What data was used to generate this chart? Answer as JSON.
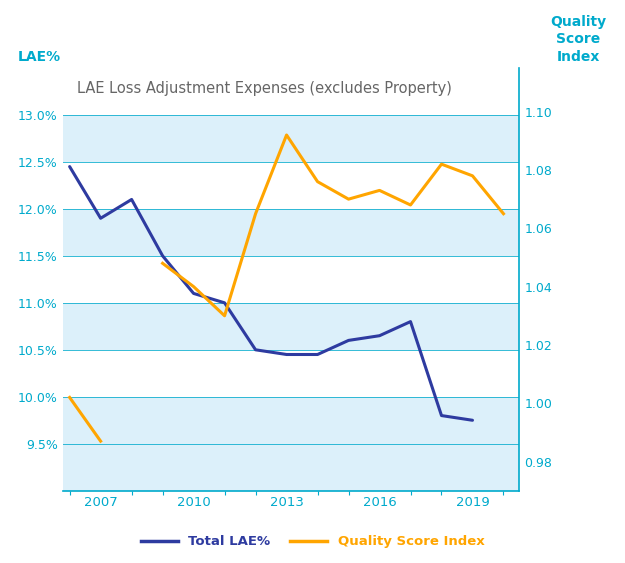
{
  "title": "LAE Loss Adjustment Expenses (excludes Property)",
  "ylabel_left": "LAE%",
  "ylabel_right": "Quality\nScore\nIndex",
  "lae_years": [
    2006,
    2007,
    2008,
    2009,
    2010,
    2011,
    2012,
    2013,
    2014,
    2015,
    2016,
    2017,
    2018,
    2019,
    2020
  ],
  "lae_values": [
    0.1245,
    0.119,
    0.121,
    0.115,
    0.111,
    0.11,
    0.105,
    0.1045,
    0.1045,
    0.106,
    0.1065,
    0.108,
    0.098,
    0.0975,
    null
  ],
  "qs_years": [
    2006,
    2007,
    2008,
    2009,
    2010,
    2011,
    2012,
    2013,
    2014,
    2015,
    2016,
    2017,
    2018,
    2019,
    2020
  ],
  "qs_values": [
    1.002,
    0.987,
    null,
    1.048,
    1.04,
    1.03,
    1.065,
    1.092,
    1.076,
    1.07,
    1.073,
    1.068,
    1.082,
    1.078,
    1.065
  ],
  "lae_color": "#2E3BA0",
  "quality_color": "#FFA500",
  "bg_color": "#DCF0FA",
  "stripe_white": "#FFFFFF",
  "axis_color": "#00AACC",
  "title_color": "#666666",
  "ylim_left": [
    0.09,
    0.135
  ],
  "ylim_right": [
    0.97,
    1.115
  ],
  "yticks_left": [
    0.095,
    0.1,
    0.105,
    0.11,
    0.115,
    0.12,
    0.125,
    0.13
  ],
  "yticks_right": [
    0.98,
    1.0,
    1.02,
    1.04,
    1.06,
    1.08,
    1.1
  ],
  "xtick_labels": [
    "2007",
    "2010",
    "2013",
    "2016",
    "2019"
  ],
  "xtick_positions": [
    2007,
    2010,
    2013,
    2016,
    2019
  ],
  "xlim": [
    2005.8,
    2020.5
  ],
  "line_width": 2.2,
  "legend_lae_label": "Total LAE%",
  "legend_qs_label": "Quality Score Index"
}
